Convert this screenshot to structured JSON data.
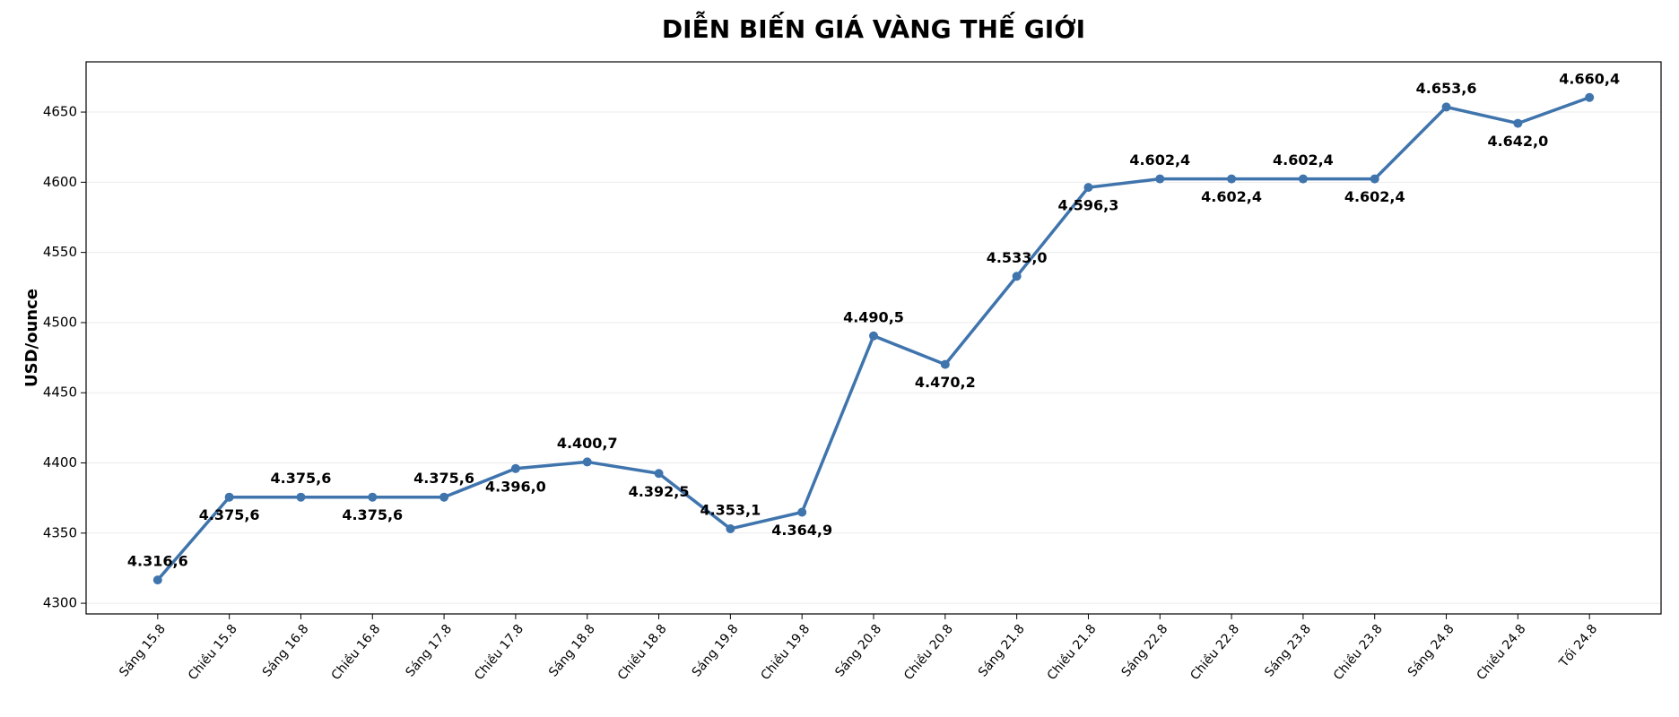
{
  "chart_data": {
    "type": "line",
    "title": "DIỄN BIẾN GIÁ VÀNG THẾ GIỚI",
    "y_label": "USD/ounce",
    "categories": [
      "Sáng 15.8",
      "Chiều 15.8",
      "Sáng 16.8",
      "Chiều 16.8",
      "Sáng 17.8",
      "Chiều 17.8",
      "Sáng 18.8",
      "Chiều 18.8",
      "Sáng 19.8",
      "Chiều 19.8",
      "Sáng 20.8",
      "Chiều 20.8",
      "Sáng 21.8",
      "Chiều 21.8",
      "Sáng 22.8",
      "Chiều 22.8",
      "Sáng 23.8",
      "Chiều 23.8",
      "Sáng 24.8",
      "Chiều 24.8",
      "Tối 24.8"
    ],
    "values": [
      4316.6,
      4375.6,
      4375.6,
      4375.6,
      4375.6,
      4396.0,
      4400.7,
      4392.5,
      4353.1,
      4364.9,
      4490.5,
      4470.2,
      4533.0,
      4596.3,
      4602.4,
      4602.4,
      4602.4,
      4602.4,
      4653.6,
      4642.0,
      4660.4
    ],
    "value_labels": [
      "4.316,6",
      "4.375,6",
      "4.375,6",
      "4.375,6",
      "4.375,6",
      "4.396,0",
      "4.400,7",
      "4.392,5",
      "4.353,1",
      "4.364,9",
      "4.490,5",
      "4.470,2",
      "4.533,0",
      "4.596,3",
      "4.602,4",
      "4.602,4",
      "4.602,4",
      "4.602,4",
      "4.653,6",
      "4.642,0",
      "4.660,4"
    ],
    "color": "#3f74ad",
    "ylim": [
      4292.4,
      4685.8
    ],
    "yticks": [
      4300,
      4350,
      4400,
      4450,
      4500,
      4550,
      4600,
      4650
    ],
    "grid": true
  }
}
